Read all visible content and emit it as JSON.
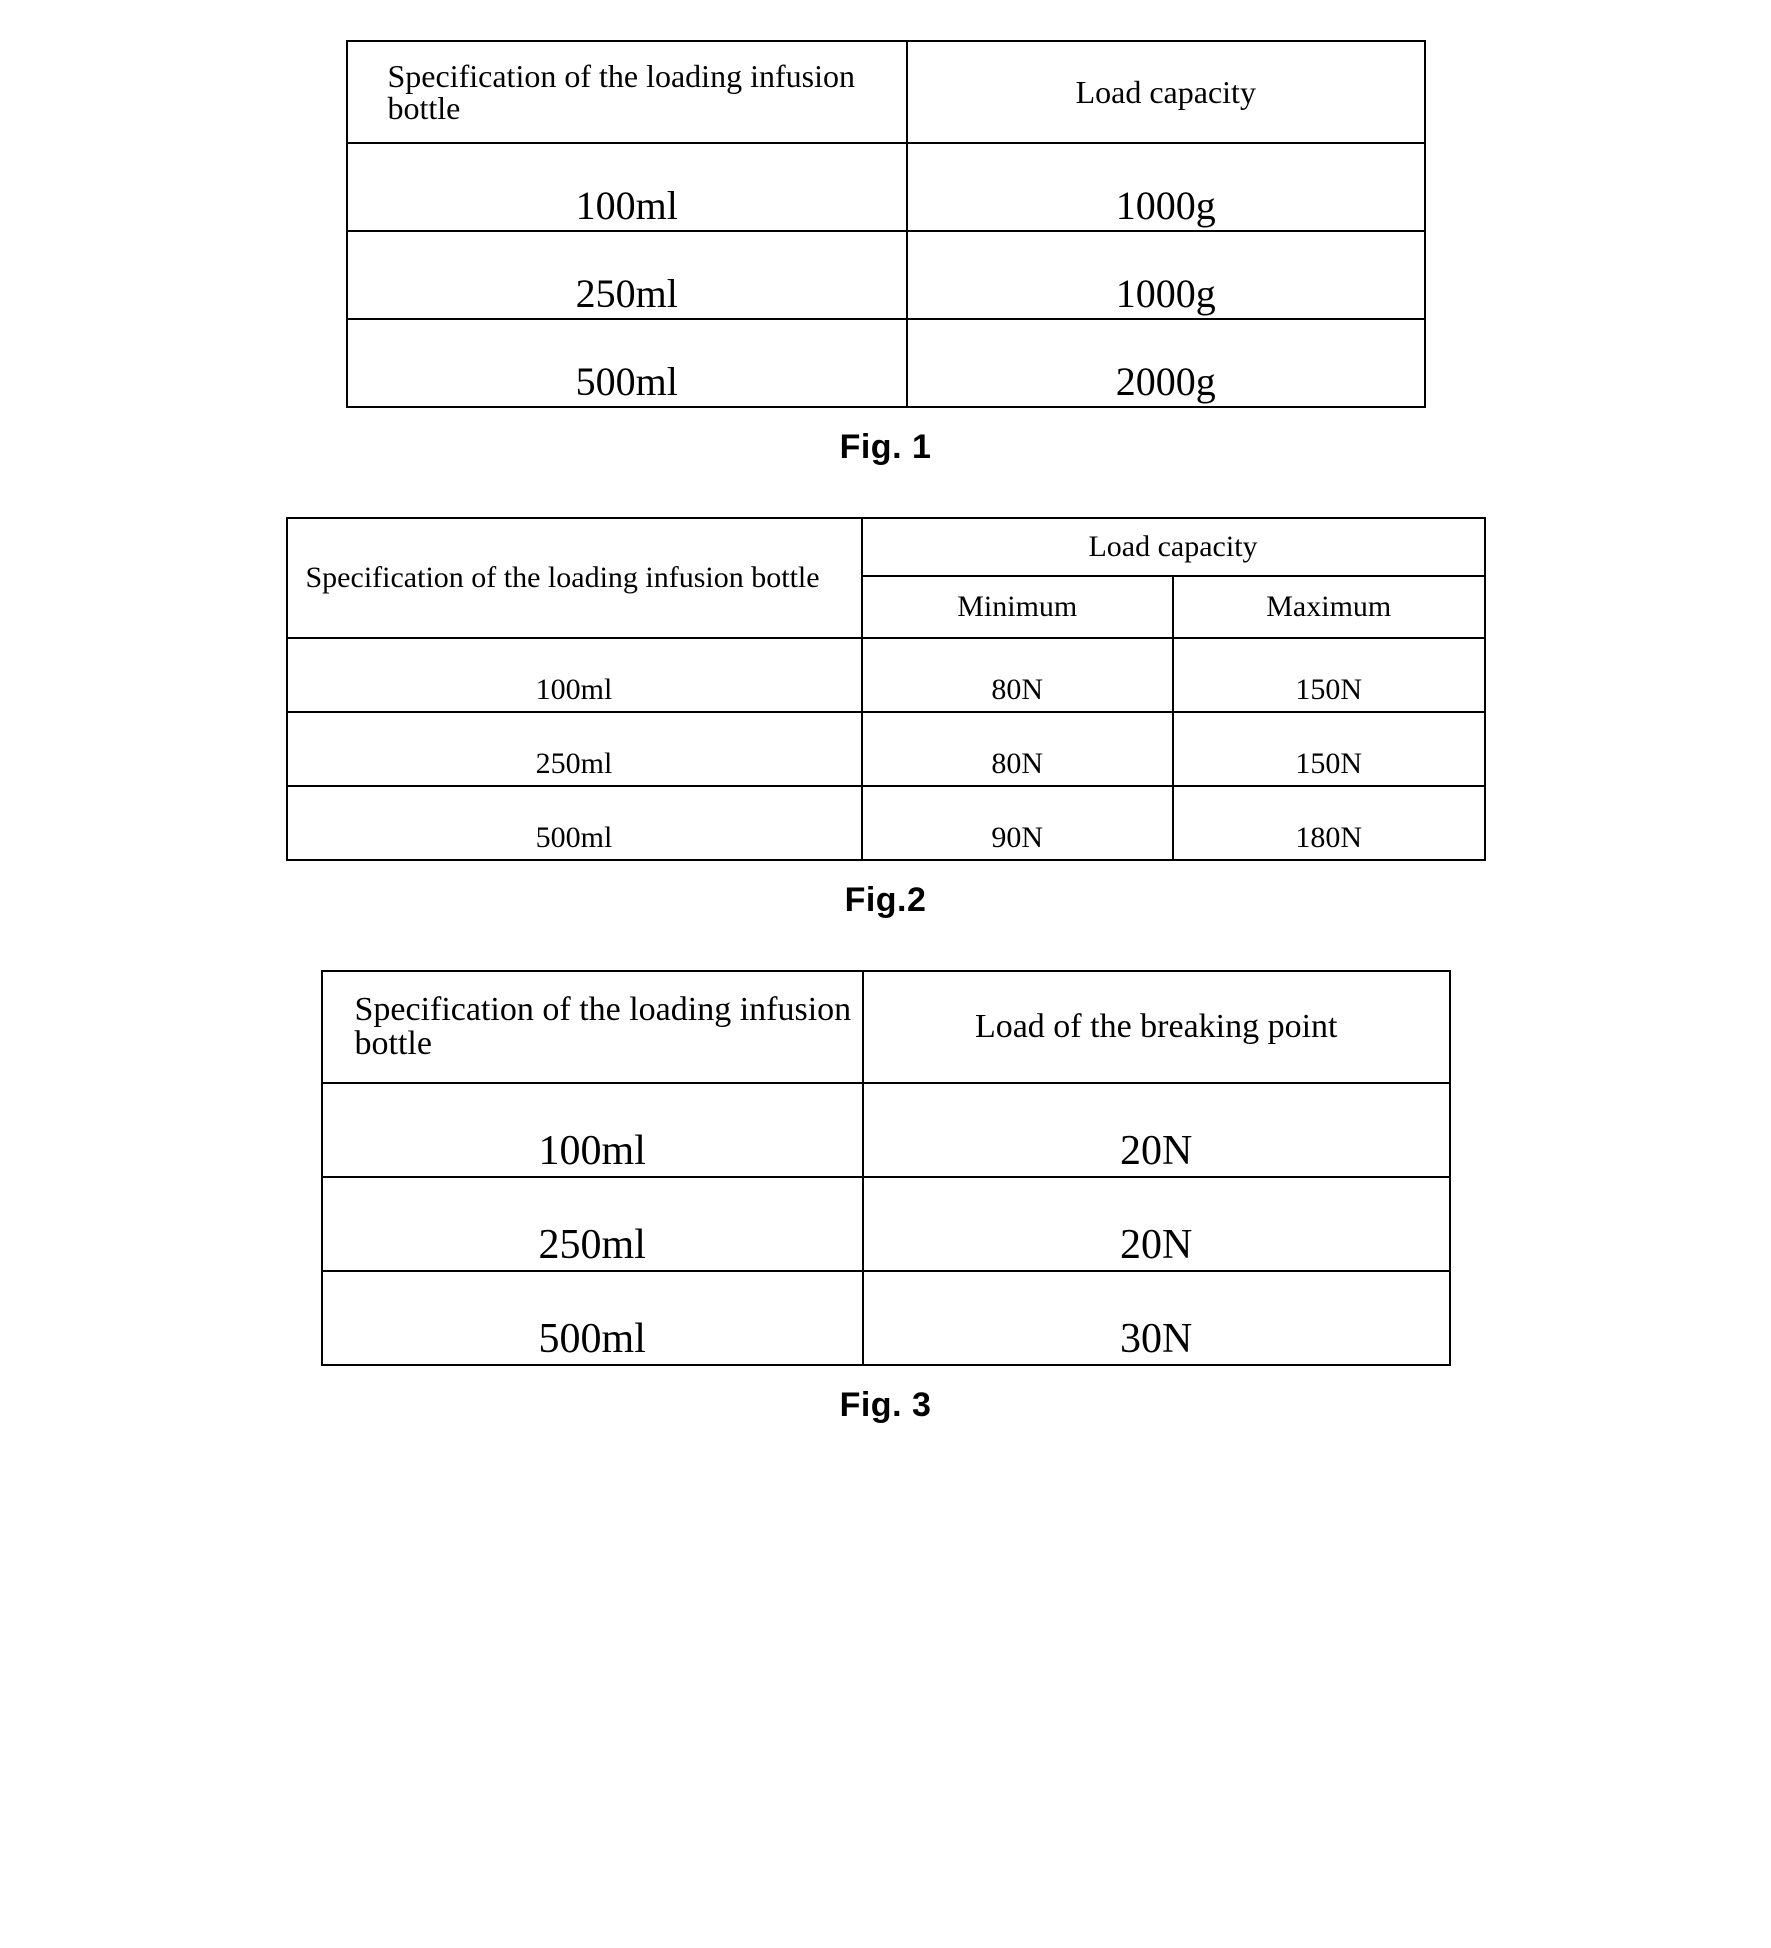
{
  "fig1": {
    "caption": "Fig. 1",
    "header": {
      "spec": "Specification of the loading infusion bottle",
      "load": "Load capacity"
    },
    "rows": [
      {
        "spec": "100ml",
        "load": "1000g"
      },
      {
        "spec": "250ml",
        "load": "1000g"
      },
      {
        "spec": "500ml",
        "load": "2000g"
      }
    ]
  },
  "fig2": {
    "caption": "Fig.2",
    "header": {
      "spec": "Specification of the loading infusion bottle",
      "load": "Load capacity",
      "min": "Minimum",
      "max": "Maximum"
    },
    "rows": [
      {
        "spec": "100ml",
        "min": "80N",
        "max": "150N"
      },
      {
        "spec": "250ml",
        "min": "80N",
        "max": "150N"
      },
      {
        "spec": "500ml",
        "min": "90N",
        "max": "180N"
      }
    ]
  },
  "fig3": {
    "caption": "Fig. 3",
    "header": {
      "spec": "Specification of the loading infusion bottle",
      "load": "Load of the breaking point"
    },
    "rows": [
      {
        "spec": "100ml",
        "load": "20N"
      },
      {
        "spec": "250ml",
        "load": "20N"
      },
      {
        "spec": "500ml",
        "load": "30N"
      }
    ]
  }
}
